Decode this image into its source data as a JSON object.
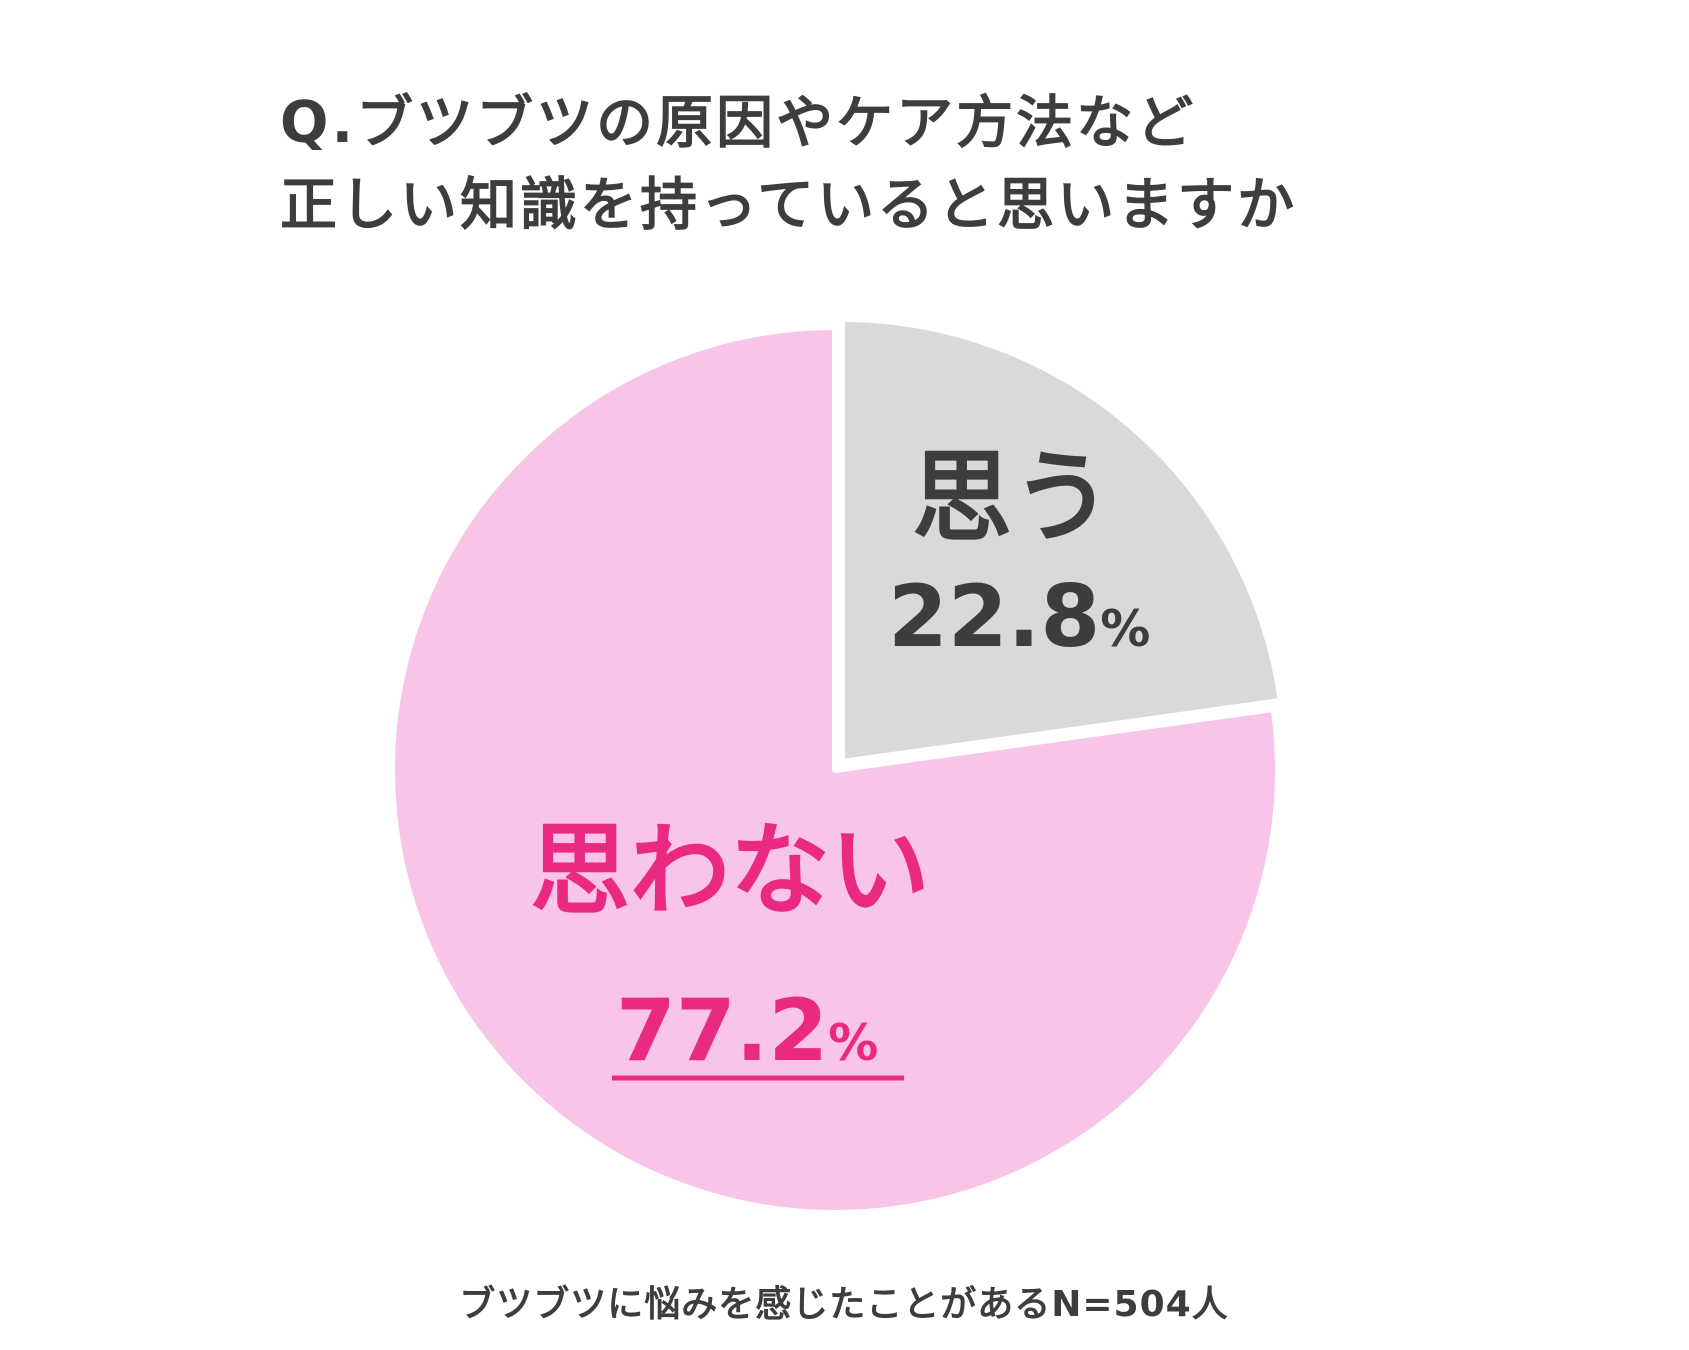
{
  "title_lines": [
    "Q.ブツブツの原因やケア方法など",
    "正しい知識を持っていると思いますか"
  ],
  "footnote": "ブツブツに悩みを感じたことがあるN=504人",
  "colors": {
    "text_dark": "#3d3d3d",
    "accent_pink": "#ea2a7f",
    "slice_pink": "#f8c5e8",
    "slice_gray": "#d9d9d9",
    "slice_border": "#ffffff"
  },
  "chart_data": {
    "type": "pie",
    "title": "Q.ブツブツの原因やケア方法など正しい知識を持っていると思いますか",
    "slices": [
      {
        "label": "思う",
        "value": 22.8,
        "value_text": "22.8",
        "unit": "%",
        "color": "#d9d9d9",
        "text_color": "#3d3d3d",
        "underline": false
      },
      {
        "label": "思わない",
        "value": 77.2,
        "value_text": "77.2",
        "unit": "%",
        "color": "#f8c5e8",
        "text_color": "#ea2a7f",
        "underline": true
      }
    ],
    "start_angle_deg": 0,
    "direction": "clockwise",
    "note": "ブツブツに悩みを感じたことがあるN=504人"
  }
}
